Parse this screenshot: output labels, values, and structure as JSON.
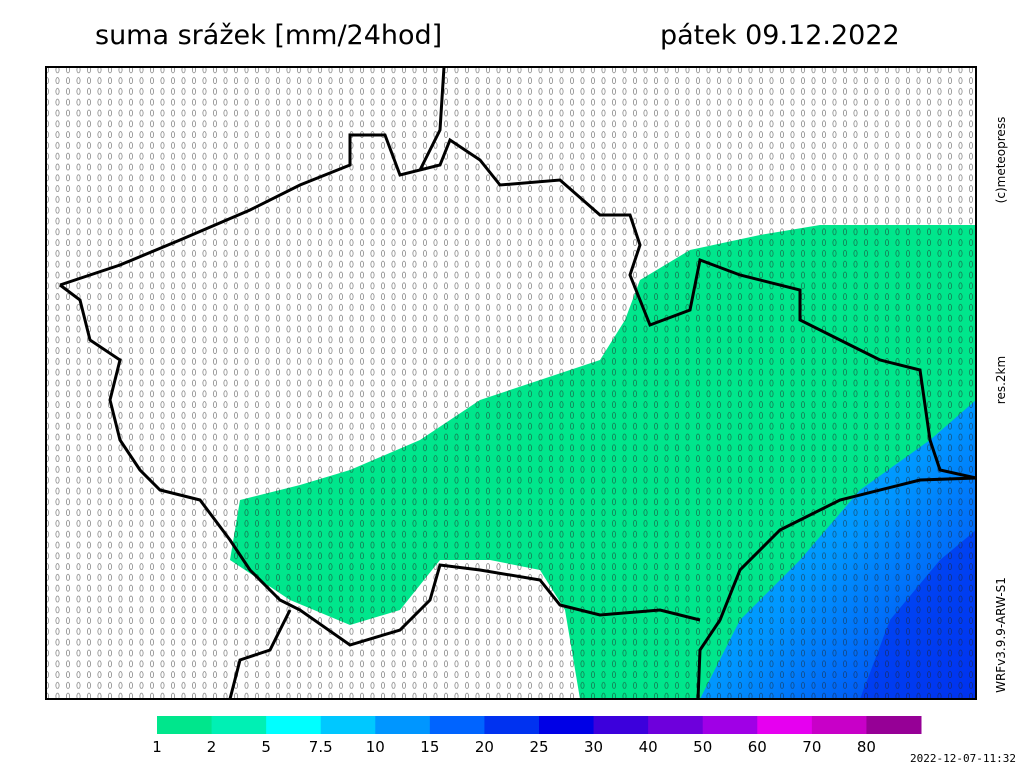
{
  "header": {
    "title": "suma srážek [mm/24hod]",
    "date": "pátek 09.12.2022"
  },
  "side": {
    "copyright": "(c)meteopress",
    "resolution": "res.2km",
    "model": "WRFv3.9.9-ARW-S1"
  },
  "legend": {
    "labels": [
      "1",
      "2",
      "5",
      "7.5",
      "10",
      "15",
      "20",
      "25",
      "30",
      "40",
      "50",
      "60",
      "70",
      "80"
    ],
    "colors": [
      "#00e68c",
      "#00f0b4",
      "#00ffff",
      "#00c8ff",
      "#0096ff",
      "#0064ff",
      "#0032f0",
      "#0000e6",
      "#3c00dc",
      "#6e00dc",
      "#a000e6",
      "#e600f0",
      "#c800c8",
      "#960096"
    ]
  },
  "footer": {
    "timestamp": "2022-12-07-11:32"
  }
}
